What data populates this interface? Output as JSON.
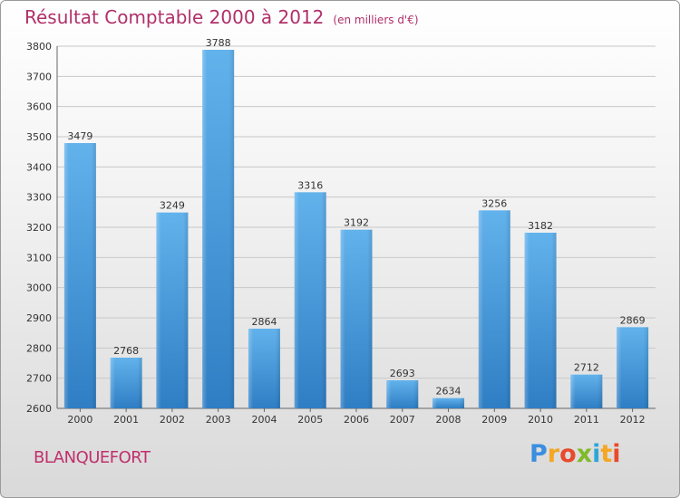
{
  "header": {
    "title": "Résultat Comptable 2000 à 2012",
    "unit": "(en milliers d'€)"
  },
  "footer": {
    "city": "BLANQUEFORT",
    "logo": "Proxiti"
  },
  "colors": {
    "bar": "#3a8fd8",
    "bar_light": "#62b2ec",
    "grid": "#c8c8c8",
    "title": "#b0306a"
  },
  "chart_data": {
    "type": "bar",
    "title": "Résultat Comptable 2000 à 2012",
    "unit": "(en milliers d'€)",
    "categories": [
      "2000",
      "2001",
      "2002",
      "2003",
      "2004",
      "2005",
      "2006",
      "2007",
      "2008",
      "2009",
      "2010",
      "2011",
      "2012"
    ],
    "values": [
      3479,
      2768,
      3249,
      3788,
      2864,
      3316,
      3192,
      2693,
      2634,
      3256,
      3182,
      2712,
      2869
    ],
    "ylim": [
      2600,
      3800
    ],
    "yticks": [
      2600,
      2700,
      2800,
      2900,
      3000,
      3100,
      3200,
      3300,
      3400,
      3500,
      3600,
      3700,
      3800
    ],
    "grid": true,
    "xlabel": "",
    "ylabel": ""
  }
}
